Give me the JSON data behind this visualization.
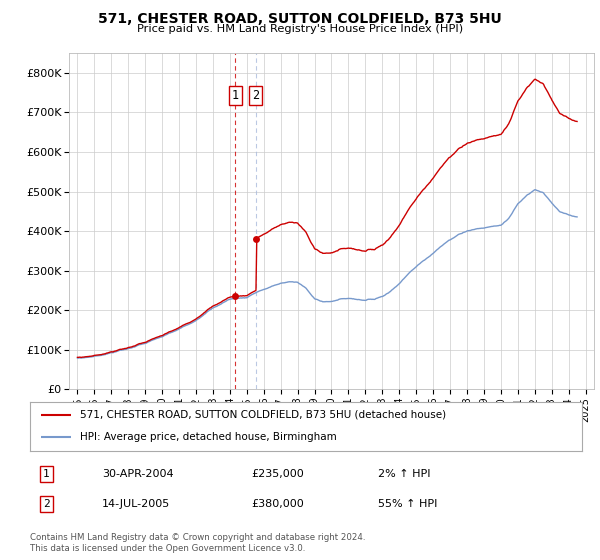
{
  "title": "571, CHESTER ROAD, SUTTON COLDFIELD, B73 5HU",
  "subtitle": "Price paid vs. HM Land Registry's House Price Index (HPI)",
  "legend_line1": "571, CHESTER ROAD, SUTTON COLDFIELD, B73 5HU (detached house)",
  "legend_line2": "HPI: Average price, detached house, Birmingham",
  "footnote": "Contains HM Land Registry data © Crown copyright and database right 2024.\nThis data is licensed under the Open Government Licence v3.0.",
  "transaction1_date": "30-APR-2004",
  "transaction1_price": "£235,000",
  "transaction1_hpi": "2% ↑ HPI",
  "transaction2_date": "14-JUL-2005",
  "transaction2_price": "£380,000",
  "transaction2_hpi": "55% ↑ HPI",
  "vline1_x": 2004.33,
  "vline2_x": 2005.54,
  "marker1_x": 2004.33,
  "marker1_y": 235000,
  "marker2_x": 2005.54,
  "marker2_y": 380000,
  "hpi_color": "#7799cc",
  "price_color": "#cc0000",
  "vline_color": "#cc0000",
  "background_color": "#ffffff",
  "grid_color": "#cccccc",
  "ylim": [
    0,
    850000
  ],
  "xlim": [
    1994.5,
    2025.5
  ],
  "yticks": [
    0,
    100000,
    200000,
    300000,
    400000,
    500000,
    600000,
    700000,
    800000
  ],
  "ytick_labels": [
    "£0",
    "£100K",
    "£200K",
    "£300K",
    "£400K",
    "£500K",
    "£600K",
    "£700K",
    "£800K"
  ],
  "xticks": [
    1995,
    1996,
    1997,
    1998,
    1999,
    2000,
    2001,
    2002,
    2003,
    2004,
    2005,
    2006,
    2007,
    2008,
    2009,
    2010,
    2011,
    2012,
    2013,
    2014,
    2015,
    2016,
    2017,
    2018,
    2019,
    2020,
    2021,
    2022,
    2023,
    2024,
    2025
  ]
}
